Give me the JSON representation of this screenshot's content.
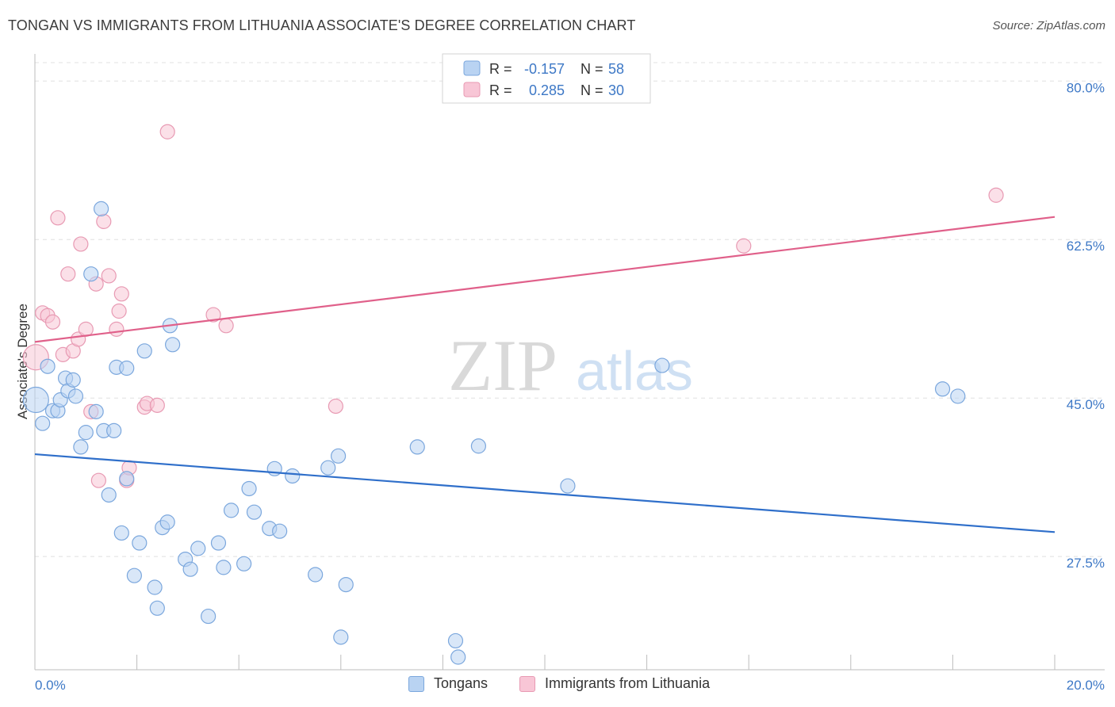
{
  "header": {
    "title": "TONGAN VS IMMIGRANTS FROM LITHUANIA ASSOCIATE'S DEGREE CORRELATION CHART",
    "source": "Source: ZipAtlas.com"
  },
  "watermark": {
    "zip": "ZIP",
    "atlas": "atlas"
  },
  "colors": {
    "blue_fill": "#b9d3f2",
    "blue_stroke": "#7ba7dd",
    "blue_line": "#2f6fca",
    "pink_fill": "#f8c6d6",
    "pink_stroke": "#e89ab3",
    "pink_line": "#e0608a",
    "grid": "#e0e0e0",
    "axis_text": "#3d78c6"
  },
  "legend": {
    "rows": [
      {
        "r_label": "R =",
        "r_value": "-0.157",
        "n_label": "N =",
        "n_value": "58"
      },
      {
        "r_label": "R =",
        "r_value": "0.285",
        "n_label": "N =",
        "n_value": "30"
      }
    ]
  },
  "bottom_legend": {
    "series_a": "Tongans",
    "series_b": "Immigrants from Lithuania"
  },
  "chart_data": {
    "type": "scatter",
    "title": "TONGAN VS IMMIGRANTS FROM LITHUANIA ASSOCIATE'S DEGREE CORRELATION CHART",
    "xlabel": "",
    "ylabel": "Associate's Degree",
    "xlim": [
      0,
      20
    ],
    "ylim": [
      15,
      83
    ],
    "x_tick_labels": [
      "0.0%",
      "20.0%"
    ],
    "y_ticks": [
      27.5,
      45.0,
      62.5,
      80.0
    ],
    "y_tick_labels": [
      "27.5%",
      "45.0%",
      "62.5%",
      "80.0%"
    ],
    "series": [
      {
        "name": "Tongans",
        "r": -0.157,
        "n": 58,
        "trend": {
          "x": [
            0,
            20
          ],
          "y": [
            38.8,
            30.2
          ]
        },
        "points": [
          {
            "x": 0.02,
            "y": 44.8,
            "big": true
          },
          {
            "x": 0.15,
            "y": 42.2
          },
          {
            "x": 0.25,
            "y": 48.5
          },
          {
            "x": 0.35,
            "y": 43.6
          },
          {
            "x": 0.45,
            "y": 43.6
          },
          {
            "x": 0.5,
            "y": 44.8
          },
          {
            "x": 0.6,
            "y": 47.2
          },
          {
            "x": 0.65,
            "y": 45.8
          },
          {
            "x": 0.75,
            "y": 47.0
          },
          {
            "x": 0.8,
            "y": 45.2
          },
          {
            "x": 0.9,
            "y": 39.6
          },
          {
            "x": 1.0,
            "y": 41.2
          },
          {
            "x": 1.1,
            "y": 58.7
          },
          {
            "x": 1.2,
            "y": 43.5
          },
          {
            "x": 1.3,
            "y": 65.9
          },
          {
            "x": 1.35,
            "y": 41.4
          },
          {
            "x": 1.45,
            "y": 34.3
          },
          {
            "x": 1.55,
            "y": 41.4
          },
          {
            "x": 1.6,
            "y": 48.4
          },
          {
            "x": 1.7,
            "y": 30.1
          },
          {
            "x": 1.8,
            "y": 36.1
          },
          {
            "x": 1.8,
            "y": 48.3
          },
          {
            "x": 1.95,
            "y": 25.4
          },
          {
            "x": 2.05,
            "y": 29.0
          },
          {
            "x": 2.15,
            "y": 50.2
          },
          {
            "x": 2.35,
            "y": 24.1
          },
          {
            "x": 2.4,
            "y": 21.8
          },
          {
            "x": 2.5,
            "y": 30.7
          },
          {
            "x": 2.6,
            "y": 31.3
          },
          {
            "x": 2.65,
            "y": 53.0
          },
          {
            "x": 2.7,
            "y": 50.9
          },
          {
            "x": 2.95,
            "y": 27.2
          },
          {
            "x": 3.05,
            "y": 26.1
          },
          {
            "x": 3.2,
            "y": 28.4
          },
          {
            "x": 3.4,
            "y": 20.9
          },
          {
            "x": 3.6,
            "y": 29.0
          },
          {
            "x": 3.7,
            "y": 26.3
          },
          {
            "x": 3.85,
            "y": 32.6
          },
          {
            "x": 4.1,
            "y": 26.7
          },
          {
            "x": 4.2,
            "y": 35.0
          },
          {
            "x": 4.3,
            "y": 32.4
          },
          {
            "x": 4.6,
            "y": 30.6
          },
          {
            "x": 4.7,
            "y": 37.2
          },
          {
            "x": 4.8,
            "y": 30.3
          },
          {
            "x": 5.05,
            "y": 36.4
          },
          {
            "x": 5.5,
            "y": 25.5
          },
          {
            "x": 5.75,
            "y": 37.3
          },
          {
            "x": 5.95,
            "y": 38.6
          },
          {
            "x": 6.0,
            "y": 18.6
          },
          {
            "x": 6.1,
            "y": 24.4
          },
          {
            "x": 7.5,
            "y": 39.6
          },
          {
            "x": 8.25,
            "y": 18.2
          },
          {
            "x": 8.3,
            "y": 16.4
          },
          {
            "x": 8.7,
            "y": 39.7
          },
          {
            "x": 10.45,
            "y": 35.3
          },
          {
            "x": 12.3,
            "y": 48.6
          },
          {
            "x": 17.8,
            "y": 46.0
          },
          {
            "x": 18.1,
            "y": 45.2
          }
        ]
      },
      {
        "name": "Immigrants from Lithuania",
        "r": 0.285,
        "n": 30,
        "trend": {
          "x": [
            0,
            20
          ],
          "y": [
            51.2,
            65.0
          ]
        },
        "points": [
          {
            "x": 0.02,
            "y": 49.5,
            "big": true
          },
          {
            "x": 0.15,
            "y": 54.4
          },
          {
            "x": 0.25,
            "y": 54.1
          },
          {
            "x": 0.35,
            "y": 53.4
          },
          {
            "x": 0.45,
            "y": 64.9
          },
          {
            "x": 0.55,
            "y": 49.8
          },
          {
            "x": 0.65,
            "y": 58.7
          },
          {
            "x": 0.75,
            "y": 50.2
          },
          {
            "x": 0.85,
            "y": 51.5
          },
          {
            "x": 0.9,
            "y": 62.0
          },
          {
            "x": 1.0,
            "y": 52.6
          },
          {
            "x": 1.1,
            "y": 43.5
          },
          {
            "x": 1.2,
            "y": 57.6
          },
          {
            "x": 1.25,
            "y": 35.9
          },
          {
            "x": 1.35,
            "y": 64.5
          },
          {
            "x": 1.45,
            "y": 58.5
          },
          {
            "x": 1.6,
            "y": 52.6
          },
          {
            "x": 1.65,
            "y": 54.6
          },
          {
            "x": 1.7,
            "y": 56.5
          },
          {
            "x": 1.8,
            "y": 35.9
          },
          {
            "x": 1.85,
            "y": 37.3
          },
          {
            "x": 2.15,
            "y": 44.0
          },
          {
            "x": 2.2,
            "y": 44.4
          },
          {
            "x": 2.4,
            "y": 44.2
          },
          {
            "x": 2.6,
            "y": 74.4
          },
          {
            "x": 3.5,
            "y": 54.2
          },
          {
            "x": 3.75,
            "y": 53.0
          },
          {
            "x": 5.9,
            "y": 44.1
          },
          {
            "x": 13.9,
            "y": 61.8
          },
          {
            "x": 18.85,
            "y": 67.4
          }
        ]
      }
    ]
  }
}
